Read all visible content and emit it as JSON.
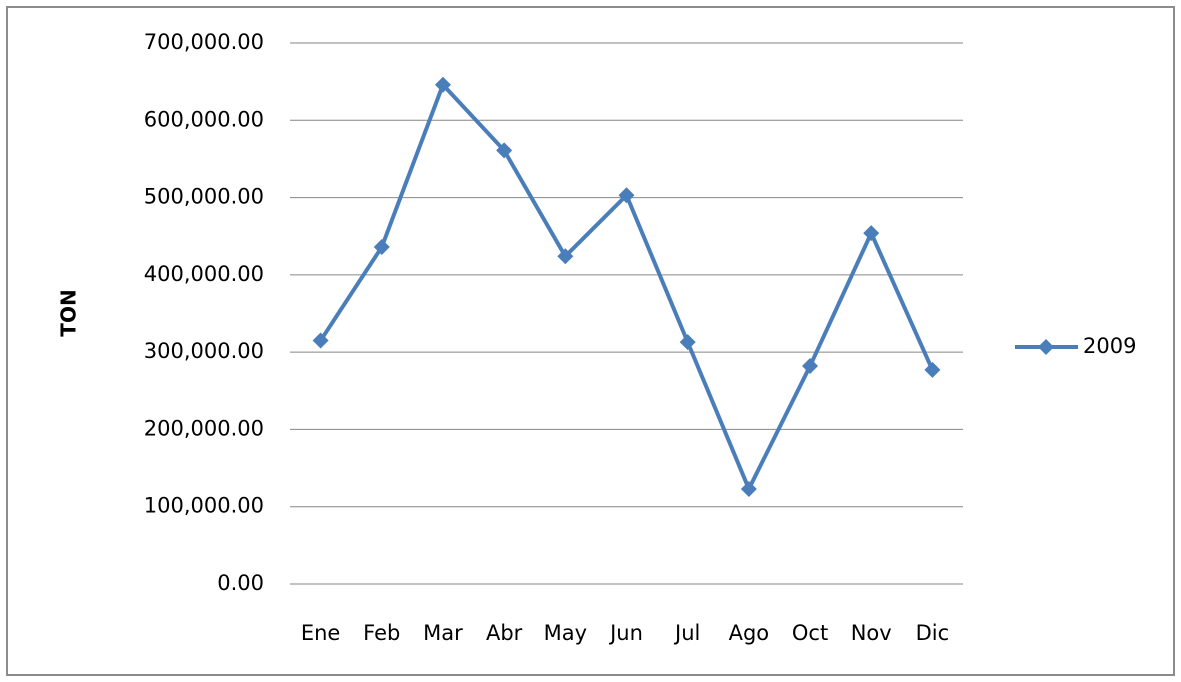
{
  "chart_data": {
    "type": "line",
    "y_label": "TON",
    "categories": [
      "Ene",
      "Feb",
      "Mar",
      "Abr",
      "May",
      "Jun",
      "Jul",
      "Ago",
      "Oct",
      "Nov",
      "Dic"
    ],
    "series": [
      {
        "name": "2009",
        "color": "#4a7ebb",
        "values": [
          315000,
          436000,
          646000,
          561000,
          424000,
          503000,
          313000,
          123000,
          282000,
          454000,
          277000
        ]
      }
    ],
    "ylim": [
      0,
      700000
    ],
    "yticks": [
      {
        "value": 0,
        "label": "0.00"
      },
      {
        "value": 100000,
        "label": "100,000.00"
      },
      {
        "value": 200000,
        "label": "200,000.00"
      },
      {
        "value": 300000,
        "label": "300,000.00"
      },
      {
        "value": 400000,
        "label": "400,000.00"
      },
      {
        "value": 500000,
        "label": "500,000.00"
      },
      {
        "value": 600000,
        "label": "600,000.00"
      },
      {
        "value": 700000,
        "label": "700,000.00"
      }
    ],
    "grid": true,
    "legend": "right"
  }
}
